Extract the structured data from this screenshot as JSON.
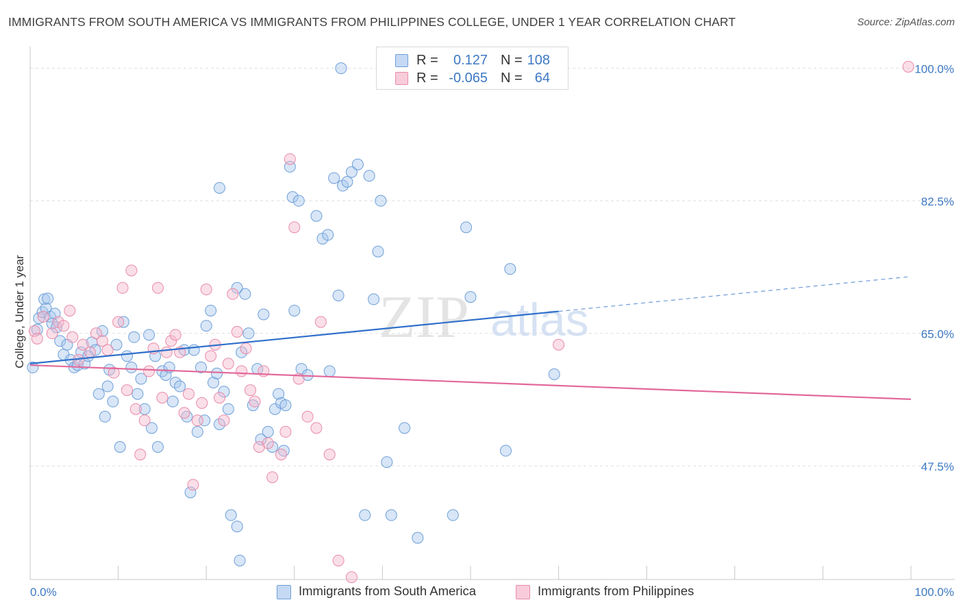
{
  "title": "IMMIGRANTS FROM SOUTH AMERICA VS IMMIGRANTS FROM PHILIPPINES COLLEGE, UNDER 1 YEAR CORRELATION CHART",
  "source": "Source: ZipAtlas.com",
  "legend": {
    "row1": {
      "r_label": "R =",
      "r_value": "0.127",
      "n_label": "N =",
      "n_value": "108"
    },
    "row2": {
      "r_label": "R =",
      "r_value": "-0.065",
      "n_label": "N =",
      "n_value": "64"
    }
  },
  "bottom_legend": {
    "series1": "Immigrants from South America",
    "series2": "Immigrants from Philippines"
  },
  "colors": {
    "blue_fill": "#a9c8ee",
    "blue_stroke": "#6d9fd8",
    "blue_line": "#2f6fcb",
    "pink_fill": "#f4b8cb",
    "pink_stroke": "#e98aa9",
    "pink_line": "#e2689a",
    "axis_text": "#3c78c3"
  },
  "chart_data": {
    "type": "scatter",
    "title": "IMMIGRANTS FROM SOUTH AMERICA VS IMMIGRANTS FROM PHILIPPINES COLLEGE, UNDER 1 YEAR CORRELATION CHART",
    "xlabel": "",
    "ylabel": "College, Under 1 year",
    "xlim": [
      0,
      100
    ],
    "ylim": [
      32.5,
      102.5
    ],
    "x_tick_labels": [
      "0.0%",
      "100.0%"
    ],
    "y_ticks": [
      47.5,
      65.0,
      82.5,
      100.0
    ],
    "y_tick_labels": [
      "47.5%",
      "65.0%",
      "82.5%",
      "100.0%"
    ],
    "grid": true,
    "watermark": {
      "zip": "ZIP",
      "atlas": "atlas"
    },
    "series": [
      {
        "name": "Immigrants from South America",
        "r": 0.127,
        "n": 108,
        "trend": {
          "x0": 0,
          "y0": 61.0,
          "x1": 60,
          "y1": 67.9,
          "dash_to_x": 100,
          "dash_to_y": 72.5
        },
        "points": [
          [
            0.3,
            60.5
          ],
          [
            0.8,
            65.5
          ],
          [
            1.0,
            67.0
          ],
          [
            1.4,
            67.8
          ],
          [
            1.6,
            69.5
          ],
          [
            1.8,
            68.3
          ],
          [
            2.0,
            69.6
          ],
          [
            2.3,
            67.2
          ],
          [
            2.5,
            66.3
          ],
          [
            2.8,
            67.6
          ],
          [
            3.0,
            65.8
          ],
          [
            3.4,
            64.0
          ],
          [
            3.8,
            62.2
          ],
          [
            4.2,
            63.5
          ],
          [
            4.6,
            61.5
          ],
          [
            5.0,
            60.5
          ],
          [
            5.4,
            60.8
          ],
          [
            5.8,
            62.5
          ],
          [
            6.2,
            61.0
          ],
          [
            6.6,
            62.0
          ],
          [
            7.0,
            63.8
          ],
          [
            7.4,
            62.8
          ],
          [
            7.8,
            57.0
          ],
          [
            8.2,
            65.3
          ],
          [
            8.5,
            54.0
          ],
          [
            8.8,
            58.0
          ],
          [
            9.0,
            60.2
          ],
          [
            9.4,
            56.0
          ],
          [
            9.8,
            63.5
          ],
          [
            10.2,
            50.0
          ],
          [
            10.6,
            66.5
          ],
          [
            11.0,
            62.0
          ],
          [
            11.5,
            60.5
          ],
          [
            11.8,
            64.5
          ],
          [
            12.2,
            57.0
          ],
          [
            12.6,
            59.0
          ],
          [
            13.0,
            55.0
          ],
          [
            13.5,
            64.8
          ],
          [
            13.8,
            52.5
          ],
          [
            14.2,
            62.0
          ],
          [
            14.5,
            50.0
          ],
          [
            15.0,
            60.0
          ],
          [
            15.4,
            59.5
          ],
          [
            15.8,
            60.5
          ],
          [
            16.2,
            56.0
          ],
          [
            16.5,
            58.5
          ],
          [
            17.0,
            58.0
          ],
          [
            17.5,
            62.8
          ],
          [
            17.8,
            54.0
          ],
          [
            18.2,
            44.0
          ],
          [
            18.6,
            62.8
          ],
          [
            19.0,
            52.0
          ],
          [
            19.4,
            60.5
          ],
          [
            19.8,
            53.5
          ],
          [
            20.0,
            66.0
          ],
          [
            20.5,
            68.0
          ],
          [
            20.8,
            58.5
          ],
          [
            21.2,
            59.7
          ],
          [
            21.5,
            84.2
          ],
          [
            22.0,
            57.3
          ],
          [
            22.5,
            55.0
          ],
          [
            22.8,
            41.0
          ],
          [
            23.5,
            39.5
          ],
          [
            23.8,
            35.0
          ],
          [
            24.0,
            62.5
          ],
          [
            24.4,
            70.2
          ],
          [
            24.8,
            65.0
          ],
          [
            25.3,
            55.5
          ],
          [
            25.8,
            60.3
          ],
          [
            26.2,
            51.0
          ],
          [
            26.5,
            67.5
          ],
          [
            27.0,
            52.0
          ],
          [
            27.5,
            50.0
          ],
          [
            27.8,
            55.0
          ],
          [
            28.2,
            57.0
          ],
          [
            28.5,
            55.8
          ],
          [
            28.8,
            49.5
          ],
          [
            29.0,
            55.5
          ],
          [
            29.5,
            87.0
          ],
          [
            29.8,
            83.0
          ],
          [
            30.5,
            82.5
          ],
          [
            30.8,
            60.3
          ],
          [
            31.5,
            59.5
          ],
          [
            32.5,
            80.5
          ],
          [
            33.2,
            77.5
          ],
          [
            33.8,
            78.0
          ],
          [
            34.0,
            60.0
          ],
          [
            34.5,
            85.5
          ],
          [
            35.0,
            70.0
          ],
          [
            35.5,
            84.5
          ],
          [
            36.0,
            85.0
          ],
          [
            36.5,
            86.3
          ],
          [
            37.2,
            87.3
          ],
          [
            38.0,
            41.0
          ],
          [
            38.5,
            85.8
          ],
          [
            39.0,
            69.5
          ],
          [
            39.5,
            75.8
          ],
          [
            39.8,
            82.5
          ],
          [
            40.5,
            48.0
          ],
          [
            41.0,
            41.0
          ],
          [
            42.5,
            52.5
          ],
          [
            44.0,
            38.0
          ],
          [
            48.0,
            41.0
          ],
          [
            49.5,
            79.0
          ],
          [
            50.0,
            69.8
          ],
          [
            54.0,
            49.5
          ],
          [
            54.5,
            73.5
          ],
          [
            59.5,
            59.6
          ],
          [
            35.3,
            100.0
          ],
          [
            23.5,
            71.0
          ],
          [
            21.5,
            53.0
          ],
          [
            30.0,
            68.0
          ]
        ]
      },
      {
        "name": "Immigrants from Philippines",
        "r": -0.065,
        "n": 64,
        "trend": {
          "x0": 0,
          "y0": 60.8,
          "x1": 100,
          "y1": 56.3
        },
        "points": [
          [
            0.5,
            65.3
          ],
          [
            0.8,
            64.3
          ],
          [
            1.5,
            67.2
          ],
          [
            2.5,
            65.0
          ],
          [
            3.2,
            66.5
          ],
          [
            3.8,
            66.0
          ],
          [
            4.5,
            68.0
          ],
          [
            4.8,
            64.5
          ],
          [
            5.5,
            61.5
          ],
          [
            6.0,
            63.5
          ],
          [
            6.8,
            62.5
          ],
          [
            7.5,
            65.0
          ],
          [
            8.2,
            64.0
          ],
          [
            8.8,
            62.8
          ],
          [
            9.5,
            59.8
          ],
          [
            10.0,
            66.5
          ],
          [
            10.5,
            71.0
          ],
          [
            11.0,
            57.5
          ],
          [
            11.5,
            73.3
          ],
          [
            12.0,
            55.0
          ],
          [
            12.5,
            49.0
          ],
          [
            13.0,
            53.5
          ],
          [
            13.5,
            60.0
          ],
          [
            14.0,
            63.0
          ],
          [
            14.5,
            71.0
          ],
          [
            15.0,
            56.5
          ],
          [
            15.5,
            62.5
          ],
          [
            16.0,
            64.0
          ],
          [
            16.5,
            64.8
          ],
          [
            17.0,
            62.5
          ],
          [
            17.5,
            54.5
          ],
          [
            18.0,
            57.0
          ],
          [
            18.5,
            45.0
          ],
          [
            19.0,
            53.5
          ],
          [
            19.5,
            55.8
          ],
          [
            20.0,
            70.8
          ],
          [
            20.5,
            62.0
          ],
          [
            21.0,
            63.5
          ],
          [
            21.5,
            56.5
          ],
          [
            22.0,
            53.5
          ],
          [
            22.5,
            61.0
          ],
          [
            23.0,
            70.2
          ],
          [
            23.5,
            65.2
          ],
          [
            24.0,
            60.0
          ],
          [
            24.5,
            63.0
          ],
          [
            25.0,
            57.5
          ],
          [
            25.5,
            56.0
          ],
          [
            26.0,
            50.0
          ],
          [
            26.5,
            60.0
          ],
          [
            27.0,
            50.5
          ],
          [
            27.5,
            46.0
          ],
          [
            28.5,
            49.0
          ],
          [
            29.0,
            52.0
          ],
          [
            29.5,
            88.0
          ],
          [
            30.0,
            79.0
          ],
          [
            30.5,
            59.0
          ],
          [
            31.5,
            54.0
          ],
          [
            32.5,
            52.5
          ],
          [
            33.0,
            66.5
          ],
          [
            34.0,
            49.0
          ],
          [
            35.0,
            35.0
          ],
          [
            36.5,
            32.8
          ],
          [
            60.0,
            63.5
          ],
          [
            99.7,
            100.2
          ]
        ]
      }
    ]
  }
}
